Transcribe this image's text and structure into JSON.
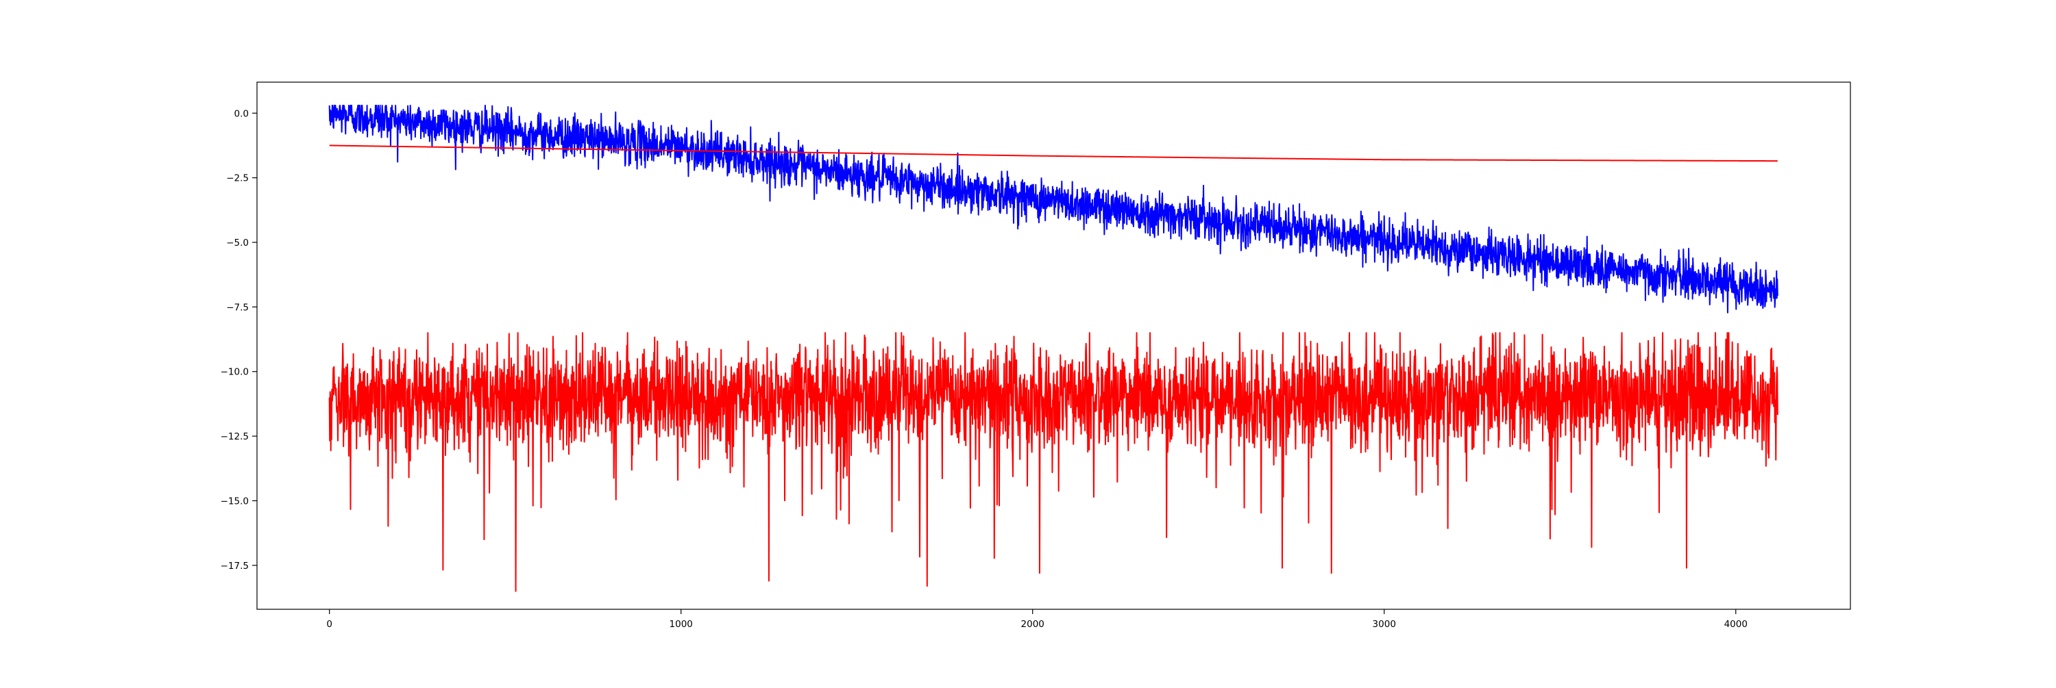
{
  "chart_data": {
    "type": "line",
    "title": "",
    "xlabel": "",
    "ylabel": "",
    "xlim": [
      -206,
      4326
    ],
    "ylim": [
      -19.2,
      1.2
    ],
    "x_ticks": [
      0,
      1000,
      2000,
      3000,
      4000
    ],
    "x_tick_labels": [
      "0",
      "1000",
      "2000",
      "3000",
      "4000"
    ],
    "y_ticks": [
      0.0,
      -2.5,
      -5.0,
      -7.5,
      -10.0,
      -12.5,
      -15.0,
      -17.5
    ],
    "y_tick_labels": [
      "0.0",
      "−2.5",
      "−5.0",
      "−7.5",
      "−10.0",
      "−12.5",
      "−15.0",
      "−17.5"
    ],
    "grid": false,
    "legend": "none",
    "n_points": 4120,
    "series": [
      {
        "color": "#0000ff",
        "approx_trend": [
          {
            "x": 0,
            "y": 0.0
          },
          {
            "x": 500,
            "y": -0.7
          },
          {
            "x": 1000,
            "y": -1.3
          },
          {
            "x": 1500,
            "y": -2.4
          },
          {
            "x": 2000,
            "y": -3.3
          },
          {
            "x": 2500,
            "y": -4.1
          },
          {
            "x": 3000,
            "y": -4.9
          },
          {
            "x": 3500,
            "y": -5.8
          },
          {
            "x": 4000,
            "y": -6.6
          },
          {
            "x": 4120,
            "y": -6.9
          }
        ],
        "noise_amplitude": 0.4,
        "range": [
          -7.9,
          0.3
        ]
      },
      {
        "color": "#ff0000",
        "approx_trend": [
          {
            "x": 0,
            "y": -1.25
          },
          {
            "x": 1000,
            "y": -1.45
          },
          {
            "x": 2000,
            "y": -1.65
          },
          {
            "x": 3000,
            "y": -1.8
          },
          {
            "x": 4120,
            "y": -1.85
          }
        ],
        "noise_amplitude": 0.0
      },
      {
        "color": "#ff0000",
        "approx_mean": -11.0,
        "noise_amplitude": 1.0,
        "range": [
          -18.5,
          -8.5
        ],
        "notable_spikes": [
          {
            "x": 440,
            "y": -16.5
          },
          {
            "x": 530,
            "y": -18.5
          },
          {
            "x": 1250,
            "y": -18.1
          },
          {
            "x": 1600,
            "y": -16.2
          },
          {
            "x": 1700,
            "y": -18.3
          },
          {
            "x": 2020,
            "y": -17.8
          },
          {
            "x": 2710,
            "y": -17.6
          },
          {
            "x": 2850,
            "y": -17.8
          },
          {
            "x": 3590,
            "y": -16.8
          },
          {
            "x": 3860,
            "y": -17.6
          }
        ]
      }
    ]
  }
}
